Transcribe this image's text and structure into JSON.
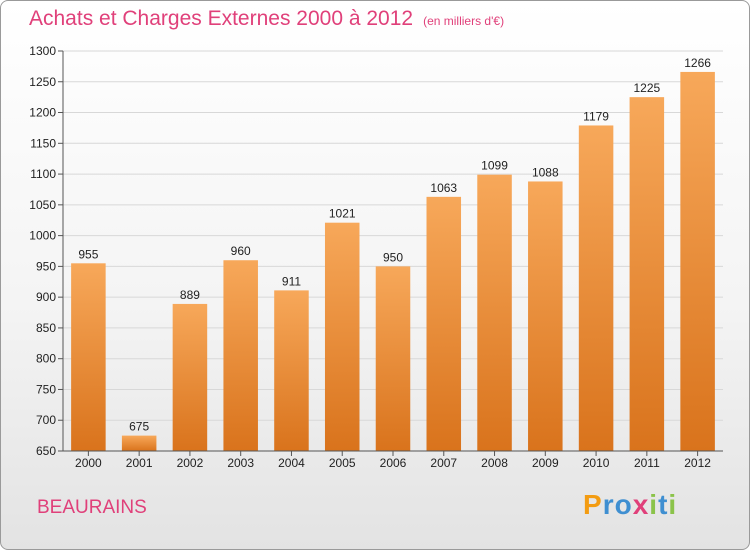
{
  "header": {
    "title": "Achats et Charges Externes 2000 à 2012",
    "unit": "(en milliers d'€)"
  },
  "footer": {
    "city": "BEAURAINS",
    "logo": [
      "P",
      "r",
      "o",
      "x",
      "i",
      "t",
      "i"
    ]
  },
  "colors": {
    "title": "#e0407a",
    "bar_top": "#f7a85a",
    "bar_bottom": "#d9731c",
    "grid": "#d8d8d8",
    "logo": [
      "#f39c12",
      "#3f8fd1",
      "#3f8fd1",
      "#e0407a",
      "#8bc34a",
      "#3f8fd1",
      "#8bc34a"
    ]
  },
  "chart_data": {
    "type": "bar",
    "title": "Achats et Charges Externes 2000 à 2012",
    "categories": [
      "2000",
      "2001",
      "2002",
      "2003",
      "2004",
      "2005",
      "2006",
      "2007",
      "2008",
      "2009",
      "2010",
      "2011",
      "2012"
    ],
    "values": [
      955,
      675,
      889,
      960,
      911,
      1021,
      950,
      1063,
      1099,
      1088,
      1179,
      1225,
      1266
    ],
    "ylim": [
      650,
      1300
    ],
    "yticks": [
      650,
      700,
      750,
      800,
      850,
      900,
      950,
      1000,
      1050,
      1100,
      1150,
      1200,
      1250,
      1300
    ],
    "grid": true,
    "xlabel": "",
    "ylabel": ""
  }
}
